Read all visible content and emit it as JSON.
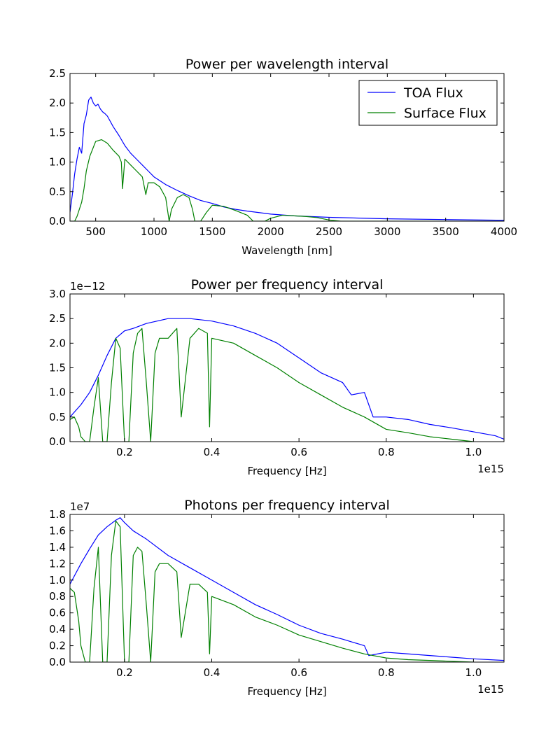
{
  "chart_data": [
    {
      "type": "line",
      "title": "Power per wavelength interval",
      "xlabel": "Wavelength [nm]",
      "ylabel": "",
      "offset_text": "",
      "xlim": [
        280,
        4000
      ],
      "ylim": [
        0,
        2.5
      ],
      "xticks": [
        500,
        1000,
        1500,
        2000,
        2500,
        3000,
        3500,
        4000
      ],
      "xtick_labels": [
        "500",
        "1000",
        "1500",
        "2000",
        "2500",
        "3000",
        "3500",
        "4000"
      ],
      "yticks": [
        0,
        0.5,
        1.0,
        1.5,
        2.0,
        2.5
      ],
      "ytick_labels": [
        "0.0",
        "0.5",
        "1.0",
        "1.5",
        "2.0",
        "2.5"
      ],
      "legend": {
        "placement": "top-right",
        "entries": [
          "TOA Flux",
          "Surface Flux"
        ]
      },
      "series": [
        {
          "name": "TOA Flux",
          "color": "#0000ff",
          "x": [
            280,
            300,
            320,
            340,
            360,
            380,
            400,
            420,
            440,
            460,
            480,
            500,
            520,
            540,
            560,
            580,
            600,
            650,
            700,
            750,
            800,
            850,
            900,
            950,
            1000,
            1100,
            1200,
            1300,
            1400,
            1500,
            1600,
            1700,
            1800,
            2000,
            2200,
            2500,
            3000,
            3500,
            4000
          ],
          "y": [
            0.15,
            0.45,
            0.8,
            1.05,
            1.25,
            1.15,
            1.65,
            1.8,
            2.05,
            2.1,
            2.0,
            1.95,
            1.98,
            1.9,
            1.85,
            1.82,
            1.78,
            1.6,
            1.45,
            1.28,
            1.15,
            1.05,
            0.95,
            0.85,
            0.75,
            0.62,
            0.52,
            0.43,
            0.35,
            0.3,
            0.24,
            0.2,
            0.17,
            0.12,
            0.09,
            0.065,
            0.04,
            0.027,
            0.015
          ]
        },
        {
          "name": "Surface Flux",
          "color": "#008000",
          "x": [
            280,
            300,
            320,
            340,
            360,
            380,
            400,
            420,
            450,
            480,
            500,
            550,
            600,
            650,
            700,
            720,
            730,
            750,
            800,
            850,
            900,
            930,
            950,
            1000,
            1050,
            1100,
            1130,
            1150,
            1200,
            1250,
            1300,
            1330,
            1350,
            1400,
            1450,
            1500,
            1600,
            1700,
            1800,
            1850,
            1900,
            1950,
            2000,
            2100,
            2200,
            2300,
            2400,
            2500,
            2600,
            3000,
            4000
          ],
          "y": [
            0,
            0,
            0,
            0.08,
            0.2,
            0.32,
            0.55,
            0.85,
            1.1,
            1.25,
            1.35,
            1.38,
            1.32,
            1.2,
            1.1,
            1.0,
            0.55,
            1.05,
            0.95,
            0.85,
            0.75,
            0.45,
            0.65,
            0.65,
            0.58,
            0.4,
            0.0,
            0.2,
            0.4,
            0.45,
            0.4,
            0.2,
            0.0,
            0.0,
            0.15,
            0.27,
            0.25,
            0.18,
            0.1,
            0.0,
            0.0,
            0.0,
            0.05,
            0.1,
            0.09,
            0.08,
            0.06,
            0.02,
            0.0,
            0.0,
            0.0
          ]
        }
      ]
    },
    {
      "type": "line",
      "title": "Power per frequency interval",
      "xlabel": "Frequency [Hz]",
      "ylabel": "",
      "offset_text": "1e−12",
      "x_offset_text": "1e15",
      "xlim": [
        0.075,
        1.07
      ],
      "ylim": [
        0,
        3.0
      ],
      "xticks": [
        0.2,
        0.4,
        0.6,
        0.8,
        1.0
      ],
      "xtick_labels": [
        "0.2",
        "0.4",
        "0.6",
        "0.8",
        "1.0"
      ],
      "yticks": [
        0,
        0.5,
        1.0,
        1.5,
        2.0,
        2.5,
        3.0
      ],
      "ytick_labels": [
        "0.0",
        "0.5",
        "1.0",
        "1.5",
        "2.0",
        "2.5",
        "3.0"
      ],
      "series": [
        {
          "name": "TOA Flux",
          "color": "#0000ff",
          "x": [
            0.075,
            0.1,
            0.12,
            0.14,
            0.16,
            0.18,
            0.2,
            0.22,
            0.25,
            0.3,
            0.35,
            0.4,
            0.45,
            0.5,
            0.55,
            0.6,
            0.65,
            0.7,
            0.72,
            0.75,
            0.77,
            0.8,
            0.85,
            0.9,
            0.95,
            1.0,
            1.05,
            1.07
          ],
          "y": [
            0.5,
            0.75,
            1.0,
            1.35,
            1.75,
            2.1,
            2.25,
            2.3,
            2.4,
            2.5,
            2.5,
            2.45,
            2.35,
            2.2,
            2.0,
            1.7,
            1.4,
            1.2,
            0.95,
            1.0,
            0.5,
            0.5,
            0.45,
            0.35,
            0.28,
            0.2,
            0.12,
            0.05
          ]
        },
        {
          "name": "Surface Flux",
          "color": "#008000",
          "x": [
            0.075,
            0.085,
            0.095,
            0.1,
            0.11,
            0.12,
            0.13,
            0.14,
            0.15,
            0.16,
            0.17,
            0.18,
            0.19,
            0.2,
            0.21,
            0.22,
            0.23,
            0.24,
            0.25,
            0.26,
            0.27,
            0.28,
            0.3,
            0.32,
            0.33,
            0.35,
            0.37,
            0.39,
            0.395,
            0.4,
            0.45,
            0.5,
            0.55,
            0.6,
            0.65,
            0.7,
            0.75,
            0.8,
            0.85,
            0.9,
            0.95,
            1.0
          ],
          "y": [
            0.45,
            0.5,
            0.3,
            0.1,
            0.0,
            0.0,
            0.7,
            1.3,
            0.0,
            0.0,
            1.2,
            2.1,
            1.9,
            0.0,
            0.0,
            1.8,
            2.2,
            2.3,
            1.2,
            0.0,
            1.8,
            2.1,
            2.1,
            2.3,
            0.5,
            2.1,
            2.3,
            2.2,
            0.3,
            2.1,
            2.0,
            1.75,
            1.5,
            1.2,
            0.95,
            0.7,
            0.5,
            0.25,
            0.18,
            0.1,
            0.05,
            0.0
          ]
        }
      ]
    },
    {
      "type": "line",
      "title": "Photons per frequency interval",
      "xlabel": "Frequency [Hz]",
      "ylabel": "",
      "offset_text": "1e7",
      "x_offset_text": "1e15",
      "xlim": [
        0.075,
        1.07
      ],
      "ylim": [
        0,
        1.8
      ],
      "xticks": [
        0.2,
        0.4,
        0.6,
        0.8,
        1.0
      ],
      "xtick_labels": [
        "0.2",
        "0.4",
        "0.6",
        "0.8",
        "1.0"
      ],
      "yticks": [
        0,
        0.2,
        0.4,
        0.6,
        0.8,
        1.0,
        1.2,
        1.4,
        1.6,
        1.8
      ],
      "ytick_labels": [
        "0.0",
        "0.2",
        "0.4",
        "0.6",
        "0.8",
        "1.0",
        "1.2",
        "1.4",
        "1.6",
        "1.8"
      ],
      "series": [
        {
          "name": "TOA Flux",
          "color": "#0000ff",
          "x": [
            0.075,
            0.1,
            0.12,
            0.14,
            0.16,
            0.18,
            0.19,
            0.2,
            0.22,
            0.25,
            0.3,
            0.35,
            0.4,
            0.45,
            0.5,
            0.55,
            0.6,
            0.65,
            0.7,
            0.75,
            0.76,
            0.8,
            0.85,
            0.9,
            0.95,
            1.0,
            1.07
          ],
          "y": [
            0.95,
            1.2,
            1.38,
            1.55,
            1.65,
            1.73,
            1.76,
            1.7,
            1.6,
            1.5,
            1.3,
            1.15,
            1.0,
            0.85,
            0.7,
            0.58,
            0.45,
            0.35,
            0.28,
            0.2,
            0.08,
            0.12,
            0.1,
            0.08,
            0.06,
            0.04,
            0.02
          ]
        },
        {
          "name": "Surface Flux",
          "color": "#008000",
          "x": [
            0.075,
            0.085,
            0.095,
            0.1,
            0.11,
            0.12,
            0.13,
            0.14,
            0.15,
            0.16,
            0.17,
            0.18,
            0.19,
            0.2,
            0.21,
            0.22,
            0.23,
            0.24,
            0.25,
            0.26,
            0.27,
            0.28,
            0.3,
            0.32,
            0.33,
            0.35,
            0.37,
            0.39,
            0.395,
            0.4,
            0.45,
            0.5,
            0.55,
            0.6,
            0.65,
            0.7,
            0.75,
            0.8,
            0.85,
            0.9,
            0.95,
            1.0
          ],
          "y": [
            0.9,
            0.85,
            0.5,
            0.2,
            0.0,
            0.0,
            0.9,
            1.4,
            0.0,
            0.0,
            1.3,
            1.72,
            1.65,
            0.0,
            0.0,
            1.3,
            1.4,
            1.35,
            0.7,
            0.0,
            1.1,
            1.2,
            1.2,
            1.1,
            0.3,
            0.95,
            0.95,
            0.85,
            0.1,
            0.8,
            0.7,
            0.55,
            0.45,
            0.33,
            0.25,
            0.17,
            0.1,
            0.05,
            0.03,
            0.02,
            0.01,
            0.0
          ]
        }
      ]
    }
  ]
}
